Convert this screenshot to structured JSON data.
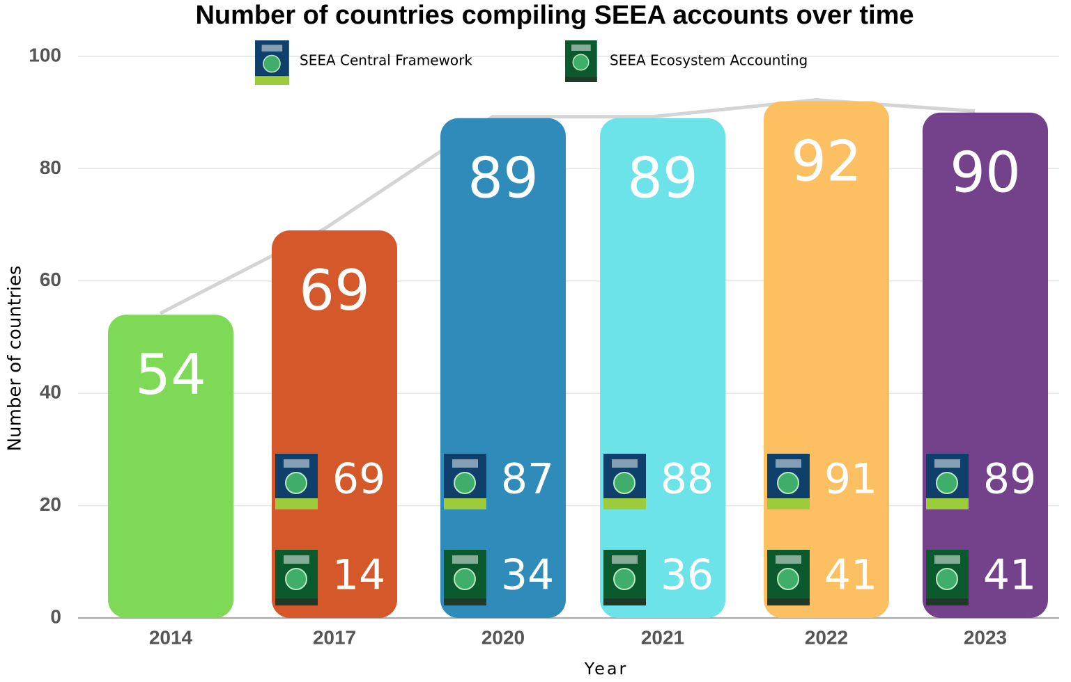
{
  "chart_data": {
    "type": "bar",
    "title": "Number of countries compiling SEEA accounts over time",
    "x_label": "Year",
    "y_label": "Number of countries",
    "categories": [
      "2014",
      "2017",
      "2020",
      "2021",
      "2022",
      "2023"
    ],
    "values": [
      54,
      69,
      89,
      89,
      92,
      90
    ],
    "colors": [
      "#7ed957",
      "#d4582a",
      "#2e8bba",
      "#6be3e8",
      "#fcbf62",
      "#74428a"
    ],
    "line_color": "#d4d4d4",
    "series": [
      {
        "name": "SEEA Central Framework",
        "color": "#0f3f6b",
        "values": [
          null,
          69,
          87,
          88,
          91,
          89
        ]
      },
      {
        "name": "SEEA Ecosystem Accounting",
        "color": "#0b5a2e",
        "values": [
          null,
          14,
          34,
          36,
          41,
          41
        ]
      }
    ],
    "ylim": [
      0,
      100
    ],
    "yticks": [
      0,
      20,
      40,
      60,
      80,
      100
    ],
    "grid": true
  }
}
